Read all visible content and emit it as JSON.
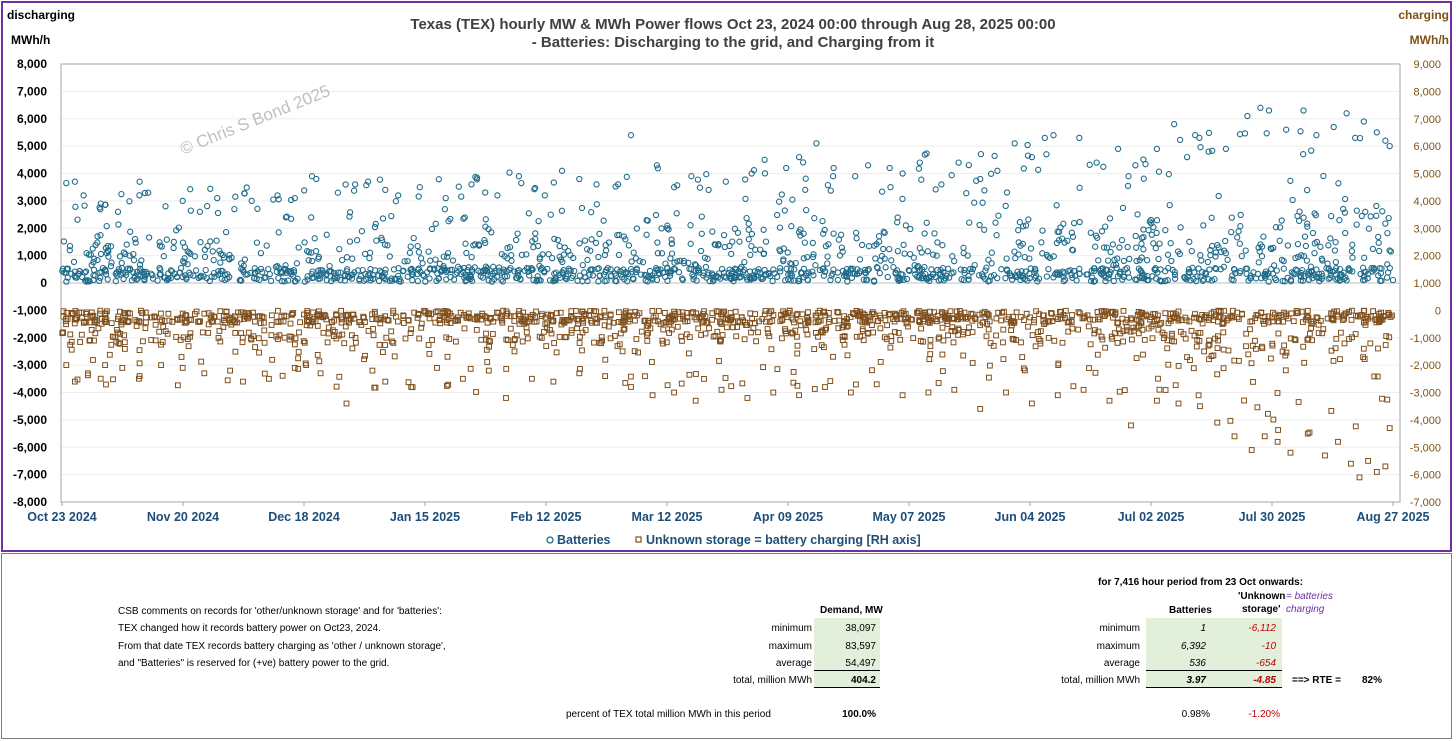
{
  "chart_frame": {
    "corner_left": "discharging",
    "corner_right": "charging",
    "unit_left": "MWh/h",
    "unit_right": "MWh/h",
    "watermark": "© Chris S Bond  2025",
    "legend_batteries": "Batteries",
    "legend_storage": "Unknown storage = battery charging [RH axis]"
  },
  "chart_data": {
    "type": "scatter",
    "title": "Texas (TEX) hourly MW & MWh Power flows Oct 23, 2024 00:00 through Aug 28, 2025 00:00",
    "subtitle": "- Batteries: Discharging to the grid, and Charging from it",
    "ylabel_left": "MWh/h",
    "ylabel_right": "MWh/h",
    "ylim_left": [
      -8000,
      8000
    ],
    "ylim_right": [
      -7000,
      9000
    ],
    "yticks_left": [
      "8,000",
      "7,000",
      "6,000",
      "5,000",
      "4,000",
      "3,000",
      "2,000",
      "1,000",
      "0",
      "-1,000",
      "-2,000",
      "-3,000",
      "-4,000",
      "-5,000",
      "-6,000",
      "-7,000",
      "-8,000"
    ],
    "yticks_right": [
      "9,000",
      "8,000",
      "7,000",
      "6,000",
      "5,000",
      "4,000",
      "3,000",
      "2,000",
      "1,000",
      "0",
      "-1,000",
      "-2,000",
      "-3,000",
      "-4,000",
      "-5,000",
      "-6,000",
      "-7,000"
    ],
    "x_range": [
      "2024-10-23",
      "2025-08-28"
    ],
    "xticks": [
      "Oct 23 2024",
      "Nov 20 2024",
      "Dec 18 2024",
      "Jan 15 2025",
      "Feb 12 2025",
      "Mar 12 2025",
      "Apr 09 2025",
      "May 07 2025",
      "Jun 04 2025",
      "Jul 02 2025",
      "Jul 30 2025",
      "Aug 27 2025"
    ],
    "grid": "horizontal, faint",
    "legend_position": "bottom-center",
    "series": [
      {
        "name": "Batteries",
        "axis": "left",
        "color": "#1f6b8a",
        "marker": "circle",
        "points": [
          [
            "2024-10-24",
            3650
          ],
          [
            "2024-10-26",
            3700
          ],
          [
            "2024-10-28",
            3200
          ],
          [
            "2024-11-01",
            2900
          ],
          [
            "2024-11-05",
            2600
          ],
          [
            "2024-11-10",
            3700
          ],
          [
            "2024-11-12",
            3300
          ],
          [
            "2024-11-16",
            2800
          ],
          [
            "2024-11-20",
            3000
          ],
          [
            "2024-11-24",
            2600
          ],
          [
            "2024-11-28",
            3100
          ],
          [
            "2024-12-02",
            2700
          ],
          [
            "2024-12-06",
            3000
          ],
          [
            "2024-12-12",
            3200
          ],
          [
            "2024-12-16",
            3100
          ],
          [
            "2024-12-20",
            3900
          ],
          [
            "2024-12-21",
            3800
          ],
          [
            "2024-12-26",
            3300
          ],
          [
            "2024-12-30",
            3600
          ],
          [
            "2025-01-02",
            3700
          ],
          [
            "2025-01-06",
            3400
          ],
          [
            "2025-01-09",
            3200
          ],
          [
            "2025-01-14",
            3500
          ],
          [
            "2025-01-20",
            3100
          ],
          [
            "2025-01-26",
            3600
          ],
          [
            "2025-02-01",
            3200
          ],
          [
            "2025-02-06",
            3900
          ],
          [
            "2025-02-12",
            3200
          ],
          [
            "2025-02-16",
            4100
          ],
          [
            "2025-02-20",
            3800
          ],
          [
            "2025-02-24",
            3600
          ],
          [
            "2025-03-01",
            3600
          ],
          [
            "2025-03-04",
            5400
          ],
          [
            "2025-03-10",
            4300
          ],
          [
            "2025-03-14",
            3500
          ],
          [
            "2025-03-18",
            3900
          ],
          [
            "2025-03-22",
            3400
          ],
          [
            "2025-03-26",
            3700
          ],
          [
            "2025-04-01",
            4000
          ],
          [
            "2025-04-04",
            4500
          ],
          [
            "2025-04-09",
            4200
          ],
          [
            "2025-04-12",
            4600
          ],
          [
            "2025-04-16",
            5100
          ],
          [
            "2025-04-20",
            4200
          ],
          [
            "2025-04-25",
            3900
          ],
          [
            "2025-04-28",
            4300
          ],
          [
            "2025-05-03",
            4200
          ],
          [
            "2025-05-06",
            4000
          ],
          [
            "2025-05-10",
            4400
          ],
          [
            "2025-05-15",
            3600
          ],
          [
            "2025-05-19",
            4400
          ],
          [
            "2025-05-24",
            3800
          ],
          [
            "2025-05-28",
            4100
          ],
          [
            "2025-06-01",
            5100
          ],
          [
            "2025-06-05",
            4600
          ],
          [
            "2025-06-08",
            5300
          ],
          [
            "2025-06-10",
            5400
          ],
          [
            "2025-06-16",
            5300
          ],
          [
            "2025-06-20",
            4400
          ],
          [
            "2025-06-25",
            4900
          ],
          [
            "2025-06-29",
            4300
          ],
          [
            "2025-07-04",
            4900
          ],
          [
            "2025-07-08",
            5800
          ],
          [
            "2025-07-11",
            4600
          ],
          [
            "2025-07-16",
            4800
          ],
          [
            "2025-07-20",
            4900
          ],
          [
            "2025-07-25",
            6100
          ],
          [
            "2025-07-28",
            6400
          ],
          [
            "2025-07-30",
            6300
          ],
          [
            "2025-08-03",
            5600
          ],
          [
            "2025-08-07",
            6300
          ],
          [
            "2025-08-10",
            5400
          ],
          [
            "2025-08-14",
            5700
          ],
          [
            "2025-08-17",
            6200
          ],
          [
            "2025-08-19",
            5300
          ],
          [
            "2025-08-21",
            5900
          ],
          [
            "2025-08-24",
            5500
          ],
          [
            "2025-08-26",
            5200
          ],
          [
            "2025-08-27",
            5000
          ]
        ]
      },
      {
        "name": "Unknown storage = battery charging [RH axis]",
        "axis": "right",
        "color": "#7f4f1c",
        "marker": "square",
        "points": [
          [
            "2024-10-24",
            -2000
          ],
          [
            "2024-10-26",
            -2600
          ],
          [
            "2024-10-29",
            -2300
          ],
          [
            "2024-11-02",
            -2000
          ],
          [
            "2024-11-06",
            -2100
          ],
          [
            "2024-11-10",
            -2400
          ],
          [
            "2024-11-15",
            -2000
          ],
          [
            "2024-11-20",
            -2100
          ],
          [
            "2024-11-25",
            -2300
          ],
          [
            "2024-12-01",
            -2200
          ],
          [
            "2024-12-04",
            -2600
          ],
          [
            "2024-12-10",
            -2500
          ],
          [
            "2024-12-16",
            -2100
          ],
          [
            "2024-12-22",
            -2300
          ],
          [
            "2024-12-28",
            -3400
          ],
          [
            "2025-01-03",
            -2200
          ],
          [
            "2025-01-06",
            -2600
          ],
          [
            "2025-01-12",
            -2800
          ],
          [
            "2025-01-18",
            -2100
          ],
          [
            "2025-01-24",
            -2500
          ],
          [
            "2025-01-30",
            -2200
          ],
          [
            "2025-02-03",
            -3200
          ],
          [
            "2025-02-09",
            -2500
          ],
          [
            "2025-02-14",
            -2600
          ],
          [
            "2025-02-20",
            -2300
          ],
          [
            "2025-02-26",
            -2400
          ],
          [
            "2025-03-04",
            -2800
          ],
          [
            "2025-03-09",
            -3100
          ],
          [
            "2025-03-14",
            -3000
          ],
          [
            "2025-03-19",
            -3300
          ],
          [
            "2025-03-25",
            -2900
          ],
          [
            "2025-03-31",
            -3200
          ],
          [
            "2025-04-06",
            -3000
          ],
          [
            "2025-04-12",
            -3100
          ],
          [
            "2025-04-18",
            -2800
          ],
          [
            "2025-04-24",
            -3000
          ],
          [
            "2025-04-30",
            -2700
          ],
          [
            "2025-05-06",
            -3100
          ],
          [
            "2025-05-12",
            -3000
          ],
          [
            "2025-05-18",
            -2900
          ],
          [
            "2025-05-24",
            -3600
          ],
          [
            "2025-05-30",
            -3000
          ],
          [
            "2025-06-05",
            -3400
          ],
          [
            "2025-06-11",
            -3100
          ],
          [
            "2025-06-17",
            -2900
          ],
          [
            "2025-06-23",
            -3300
          ],
          [
            "2025-06-28",
            -4200
          ],
          [
            "2025-07-04",
            -3300
          ],
          [
            "2025-07-09",
            -3400
          ],
          [
            "2025-07-14",
            -3500
          ],
          [
            "2025-07-18",
            -4100
          ],
          [
            "2025-07-22",
            -4600
          ],
          [
            "2025-07-26",
            -5100
          ],
          [
            "2025-07-29",
            -4600
          ],
          [
            "2025-08-01",
            -4800
          ],
          [
            "2025-08-04",
            -5200
          ],
          [
            "2025-08-08",
            -4500
          ],
          [
            "2025-08-12",
            -5300
          ],
          [
            "2025-08-15",
            -4800
          ],
          [
            "2025-08-18",
            -5600
          ],
          [
            "2025-08-20",
            -6100
          ],
          [
            "2025-08-22",
            -5500
          ],
          [
            "2025-08-24",
            -5900
          ],
          [
            "2025-08-26",
            -5700
          ],
          [
            "2025-08-27",
            -4300
          ]
        ]
      }
    ]
  },
  "table": {
    "period_header": "for 7,416 hour period from 23 Oct onwards:",
    "unknown_header_1": "'Unknown",
    "unknown_header_2": "storage'",
    "eq_batteries": "= batteries",
    "eq_charging": "charging",
    "demand_header": "Demand, MW",
    "batteries_header": "Batteries",
    "comments": [
      "CSB comments on  records for 'other/unknown storage' and for 'batteries':",
      "TEX changed how it records battery power on Oct23, 2024.",
      "From that date TEX records battery charging as  'other / unknown storage',",
      "and \"Batteries\" is reserved for (+ve) battery power to the grid."
    ],
    "row_labels": [
      "minimum",
      "maximum",
      "average",
      "total, million MWh"
    ],
    "demand": [
      "38,097",
      "83,597",
      "54,497",
      "404.2"
    ],
    "batteries": [
      "1",
      "6,392",
      "536",
      "3.97"
    ],
    "unknown_storage": [
      "-6,112",
      "-10",
      "-654",
      "-4.85"
    ],
    "rte_label": "==> RTE =",
    "rte_value": "82%",
    "percent_label": "percent of TEX total million MWh in this period",
    "percent_demand": "100.0%",
    "percent_batteries": "0.98%",
    "percent_unknown": "-1.20%"
  }
}
